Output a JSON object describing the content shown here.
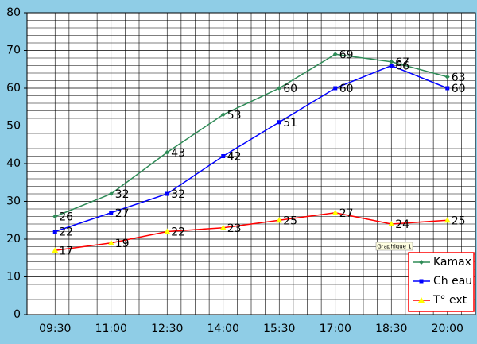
{
  "chart_data": {
    "type": "line",
    "categories": [
      "09:30",
      "11:00",
      "12:30",
      "14:00",
      "15:30",
      "17:00",
      "18:30",
      "20:00"
    ],
    "series": [
      {
        "name": "Kamax",
        "color": "#2e8b57",
        "marker": "diamond",
        "values": [
          26,
          32,
          43,
          53,
          60,
          69,
          67,
          63
        ]
      },
      {
        "name": "Ch eau",
        "color": "#0000ff",
        "marker": "square",
        "values": [
          22,
          27,
          32,
          42,
          51,
          60,
          66,
          60
        ]
      },
      {
        "name": "T° ext",
        "color": "#ff0000",
        "marker": "triangle",
        "marker_color": "#ffff00",
        "values": [
          17,
          19,
          22,
          23,
          25,
          27,
          24,
          25
        ]
      }
    ],
    "ylim": [
      0,
      80
    ],
    "yticks": [
      0,
      10,
      20,
      30,
      40,
      50,
      60,
      70,
      80
    ],
    "grid": true,
    "legend": "bottom-right",
    "annotation": "Graphique 1",
    "data_labels": true
  }
}
